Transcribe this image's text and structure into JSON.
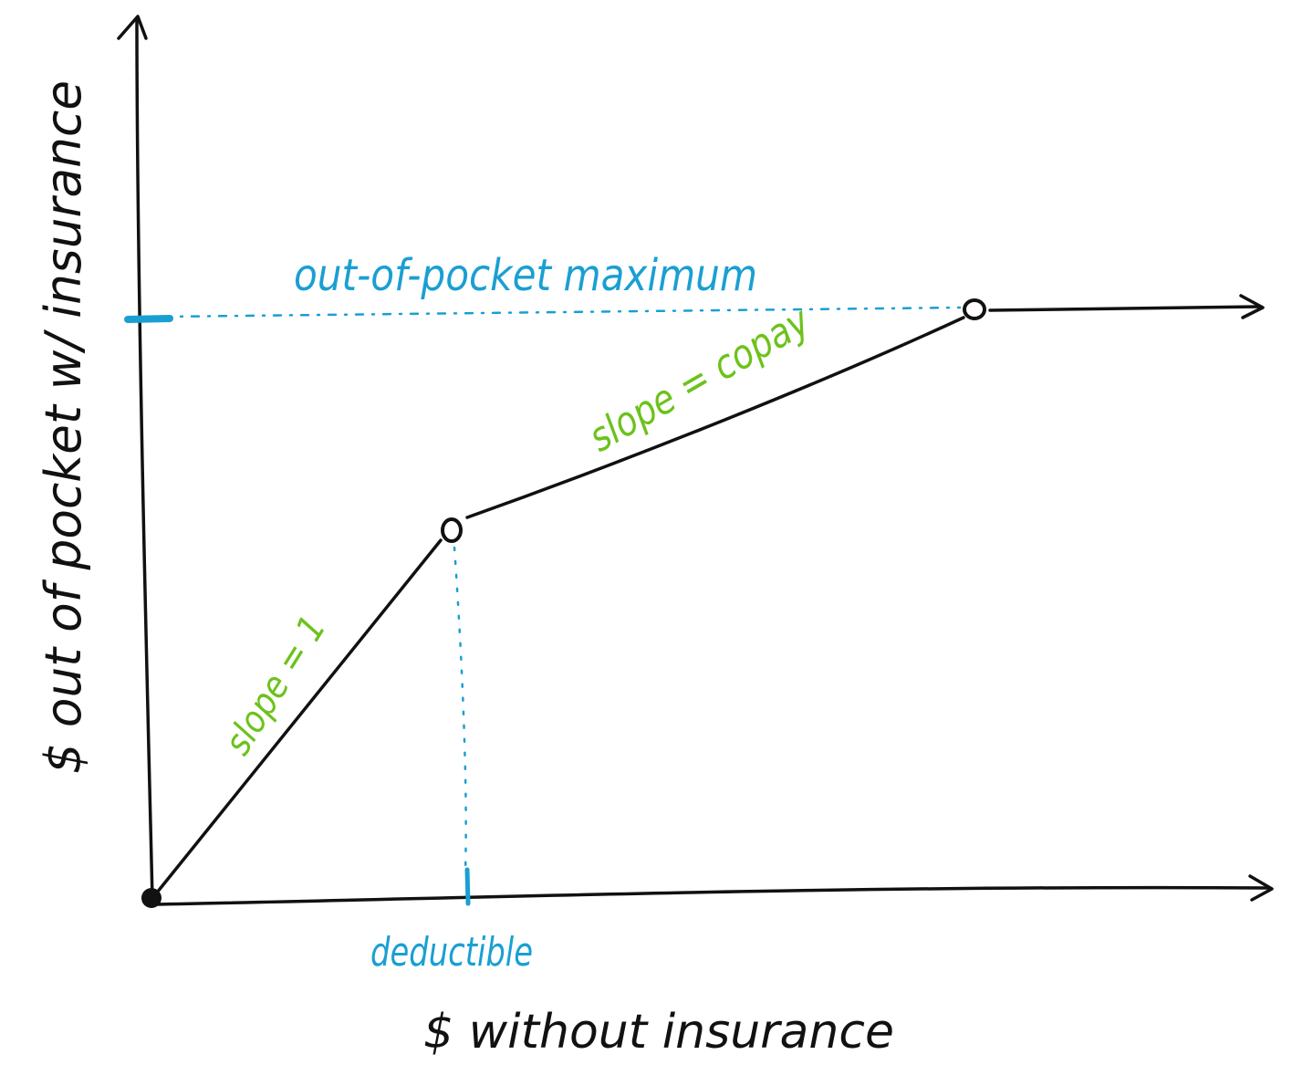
{
  "colors": {
    "ink": "#111111",
    "blue": "#1a9fd2",
    "green": "#6cc21b",
    "background": "#ffffff"
  },
  "axes": {
    "x_label": "$   without   insurance",
    "y_label": "$   out of pocket w/ insurance"
  },
  "annotations": {
    "oop_max": "out-of-pocket maximum",
    "deductible": "deductible",
    "slope_one": "slope = 1",
    "slope_copay": "slope = copay"
  }
}
